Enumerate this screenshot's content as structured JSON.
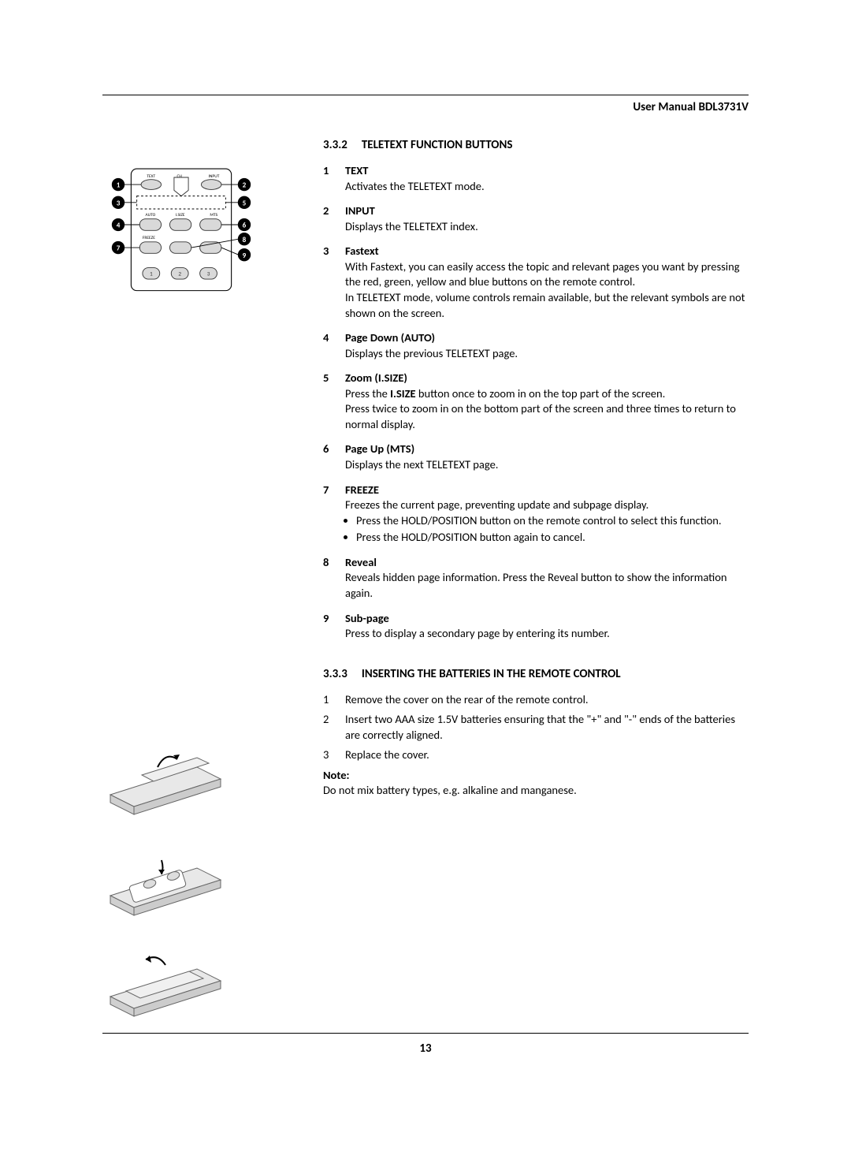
{
  "header": {
    "title": "User Manual BDL3731V"
  },
  "section1": {
    "num": "3.3.2",
    "title": "TELETEXT FUNCTION BUTTONS"
  },
  "items": [
    {
      "n": "1",
      "title": "TEXT",
      "body": [
        "Activates the TELETEXT mode."
      ]
    },
    {
      "n": "2",
      "title": "INPUT",
      "body": [
        "Displays the TELETEXT index."
      ]
    },
    {
      "n": "3",
      "title": "Fastext",
      "body": [
        "With Fastext, you can easily access the topic and relevant pages you want by pressing the red, green, yellow and blue buttons on the remote control.",
        "In TELETEXT mode, volume controls remain available, but the relevant symbols are not shown on the screen."
      ]
    },
    {
      "n": "4",
      "title": "Page Down (AUTO)",
      "body": [
        "Displays the previous TELETEXT page."
      ]
    },
    {
      "n": "5",
      "title": "Zoom (I.SIZE)",
      "body": [
        "Press the <b>I.SIZE</b> button once to zoom in on the top part of the screen.",
        "Press twice to zoom in on the bottom part of the screen and three times to return to normal display."
      ]
    },
    {
      "n": "6",
      "title": "Page Up (MTS)",
      "body": [
        "Displays the next TELETEXT page."
      ]
    },
    {
      "n": "7",
      "title": "FREEZE",
      "body": [
        "Freezes the current page, preventing update and subpage display."
      ],
      "bullets": [
        "Press the HOLD/POSITION button on the remote control to select this function.",
        "Press the HOLD/POSITION button again to cancel."
      ]
    },
    {
      "n": "8",
      "title": "Reveal",
      "body": [
        "Reveals hidden page information. Press the Reveal button to show the information again."
      ]
    },
    {
      "n": "9",
      "title": "Sub-page",
      "body": [
        "Press to display a secondary page by entering its number."
      ]
    }
  ],
  "section2": {
    "num": "3.3.3",
    "title": "INSERTING THE BATTERIES IN THE REMOTE CONTROL"
  },
  "steps": [
    {
      "n": "1",
      "text": "Remove the cover on the rear of the remote control."
    },
    {
      "n": "2",
      "text": "Insert two AAA size 1.5V batteries ensuring that the \"+\" and \"-\" ends of the batteries are correctly aligned."
    },
    {
      "n": "3",
      "text": "Replace the cover."
    }
  ],
  "note": {
    "label": "Note:",
    "text": "Do not mix battery types, e.g. alkaline and manganese."
  },
  "remote": {
    "callouts": [
      "1",
      "2",
      "3",
      "4",
      "5",
      "6",
      "7",
      "8",
      "9"
    ],
    "row_labels_top": [
      "TEXT",
      "CH",
      "INPUT"
    ],
    "row_labels_mid": [
      "AUTO",
      "I.SIZE",
      "MTS"
    ],
    "row_label_freeze": "FREEZE",
    "num_row": [
      "1",
      "2",
      "3"
    ]
  },
  "pageNumber": "13",
  "colors": {
    "text": "#000000",
    "bg": "#ffffff",
    "remote_outline": "#000000",
    "remote_btn_fill": "#d9d9d9",
    "remote_btn_stroke": "#333333",
    "callout_fill": "#000000",
    "callout_text": "#ffffff",
    "battery_stroke": "#666666",
    "battery_fill": "#e8e8e8"
  }
}
